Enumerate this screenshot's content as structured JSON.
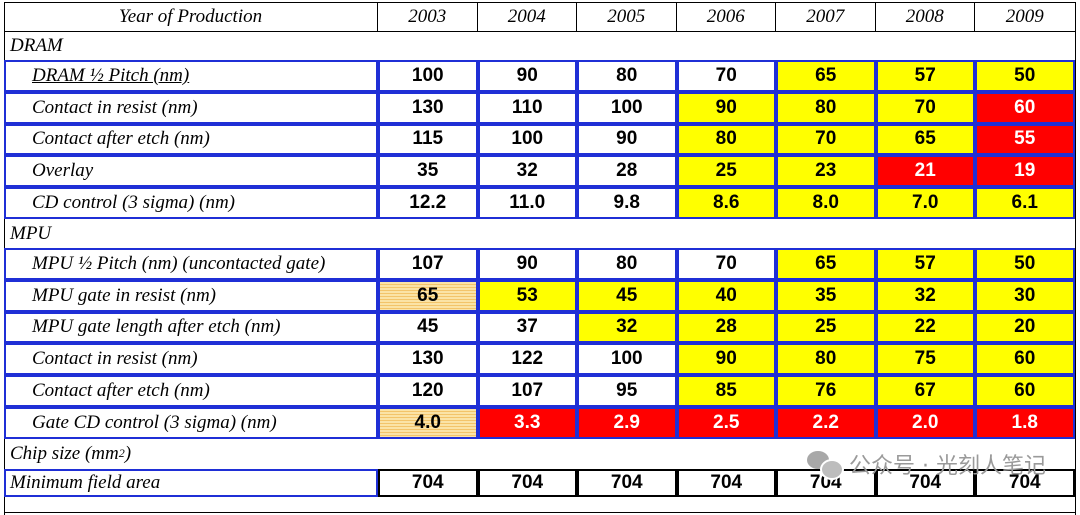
{
  "header": {
    "label": "Year of Production",
    "years": [
      "2003",
      "2004",
      "2005",
      "2006",
      "2007",
      "2008",
      "2009"
    ]
  },
  "colors": {
    "white": "#ffffff",
    "yellow": "#ffff00",
    "red": "#ff0000",
    "hatch": "#f7d48a",
    "border": "#1f2fd6"
  },
  "sections": [
    {
      "title": "DRAM",
      "rows": [
        {
          "label": "DRAM ½ Pitch (nm)",
          "underline": true,
          "cells": [
            [
              "100",
              "w"
            ],
            [
              "90",
              "w"
            ],
            [
              "80",
              "w"
            ],
            [
              "70",
              "w"
            ],
            [
              "65",
              "y"
            ],
            [
              "57",
              "y"
            ],
            [
              "50",
              "y"
            ]
          ]
        },
        {
          "label": "Contact in resist (nm)",
          "cells": [
            [
              "130",
              "w"
            ],
            [
              "110",
              "w"
            ],
            [
              "100",
              "w"
            ],
            [
              "90",
              "y"
            ],
            [
              "80",
              "y"
            ],
            [
              "70",
              "y"
            ],
            [
              "60",
              "r"
            ]
          ]
        },
        {
          "label": "Contact after etch (nm)",
          "cells": [
            [
              "115",
              "w"
            ],
            [
              "100",
              "w"
            ],
            [
              "90",
              "w"
            ],
            [
              "80",
              "y"
            ],
            [
              "70",
              "y"
            ],
            [
              "65",
              "y"
            ],
            [
              "55",
              "r"
            ]
          ]
        },
        {
          "label": "Overlay",
          "cells": [
            [
              "35",
              "w"
            ],
            [
              "32",
              "w"
            ],
            [
              "28",
              "w"
            ],
            [
              "25",
              "y"
            ],
            [
              "23",
              "y"
            ],
            [
              "21",
              "r"
            ],
            [
              "19",
              "r"
            ]
          ]
        },
        {
          "label": "CD control (3 sigma) (nm)",
          "cells": [
            [
              "12.2",
              "w"
            ],
            [
              "11.0",
              "w"
            ],
            [
              "9.8",
              "w"
            ],
            [
              "8.6",
              "y"
            ],
            [
              "8.0",
              "y"
            ],
            [
              "7.0",
              "y"
            ],
            [
              "6.1",
              "y"
            ]
          ]
        }
      ]
    },
    {
      "title": "MPU",
      "rows": [
        {
          "label": "MPU ½ Pitch (nm) (uncontacted gate)",
          "cells": [
            [
              "107",
              "w"
            ],
            [
              "90",
              "w"
            ],
            [
              "80",
              "w"
            ],
            [
              "70",
              "w"
            ],
            [
              "65",
              "y"
            ],
            [
              "57",
              "y"
            ],
            [
              "50",
              "y"
            ]
          ]
        },
        {
          "label": "MPU gate in resist (nm)",
          "cells": [
            [
              "65",
              "h"
            ],
            [
              "53",
              "y"
            ],
            [
              "45",
              "y"
            ],
            [
              "40",
              "y"
            ],
            [
              "35",
              "y"
            ],
            [
              "32",
              "y"
            ],
            [
              "30",
              "y"
            ]
          ]
        },
        {
          "label": "MPU gate length after etch (nm)",
          "cells": [
            [
              "45",
              "w"
            ],
            [
              "37",
              "w"
            ],
            [
              "32",
              "y"
            ],
            [
              "28",
              "y"
            ],
            [
              "25",
              "y"
            ],
            [
              "22",
              "y"
            ],
            [
              "20",
              "y"
            ]
          ]
        },
        {
          "label": "Contact in resist (nm)",
          "cells": [
            [
              "130",
              "w"
            ],
            [
              "122",
              "w"
            ],
            [
              "100",
              "w"
            ],
            [
              "90",
              "y"
            ],
            [
              "80",
              "y"
            ],
            [
              "75",
              "y"
            ],
            [
              "60",
              "y"
            ]
          ]
        },
        {
          "label": "Contact after etch (nm)",
          "cells": [
            [
              "120",
              "w"
            ],
            [
              "107",
              "w"
            ],
            [
              "95",
              "w"
            ],
            [
              "85",
              "y"
            ],
            [
              "76",
              "y"
            ],
            [
              "67",
              "y"
            ],
            [
              "60",
              "y"
            ]
          ]
        },
        {
          "label": "Gate CD control (3 sigma) (nm)",
          "cells": [
            [
              "4.0",
              "h"
            ],
            [
              "3.3",
              "r"
            ],
            [
              "2.9",
              "r"
            ],
            [
              "2.5",
              "r"
            ],
            [
              "2.2",
              "r"
            ],
            [
              "2.0",
              "r"
            ],
            [
              "1.8",
              "r"
            ]
          ]
        }
      ]
    },
    {
      "title": "Chip size (mm",
      "title_sup": "2",
      "title_end": ")",
      "rows": [
        {
          "label": "Minimum field area",
          "flush": true,
          "cells": [
            [
              "704",
              "w"
            ],
            [
              "704",
              "w"
            ],
            [
              "704",
              "w"
            ],
            [
              "704",
              "w"
            ],
            [
              "704",
              "w"
            ],
            [
              "704",
              "w"
            ],
            [
              "704",
              "w"
            ]
          ]
        }
      ]
    }
  ],
  "watermark": {
    "text": "公众号 · 光刻人笔记",
    "icon": "wechat-icon"
  }
}
